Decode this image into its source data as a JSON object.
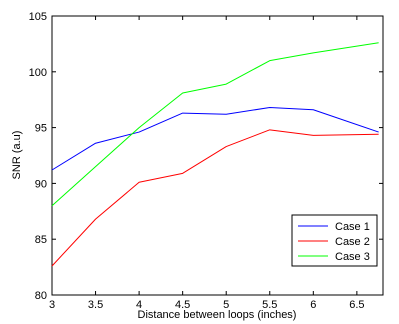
{
  "chart_data": {
    "type": "line",
    "title": "",
    "xlabel": "Distance between loops (inches)",
    "ylabel": "SNR (a.u)",
    "xlim": [
      3,
      6.8
    ],
    "ylim": [
      80,
      105
    ],
    "xticks": [
      3,
      3.5,
      4,
      4.5,
      5,
      5.5,
      6,
      6.5
    ],
    "xtick_labels": [
      "3",
      "3.5",
      "4",
      "4.5",
      "5",
      "5.5",
      "6",
      "6.5"
    ],
    "yticks": [
      80,
      85,
      90,
      95,
      100,
      105
    ],
    "ytick_labels": [
      "80",
      "85",
      "90",
      "95",
      "100",
      "105"
    ],
    "grid": false,
    "legend_position": "bottom-right",
    "x": [
      3,
      3.5,
      4,
      4.5,
      5,
      5.5,
      6,
      6.75
    ],
    "series": [
      {
        "name": "Case 1",
        "color": "#0000ff",
        "values": [
          91.2,
          93.6,
          94.6,
          96.3,
          96.2,
          96.8,
          96.6,
          94.6
        ]
      },
      {
        "name": "Case 2",
        "color": "#ff0000",
        "values": [
          82.6,
          86.8,
          90.1,
          90.9,
          93.3,
          94.8,
          94.3,
          94.4
        ]
      },
      {
        "name": "Case 3",
        "color": "#00ff00",
        "values": [
          88.0,
          91.5,
          95.0,
          98.1,
          98.9,
          101.0,
          101.7,
          102.6
        ]
      }
    ]
  }
}
